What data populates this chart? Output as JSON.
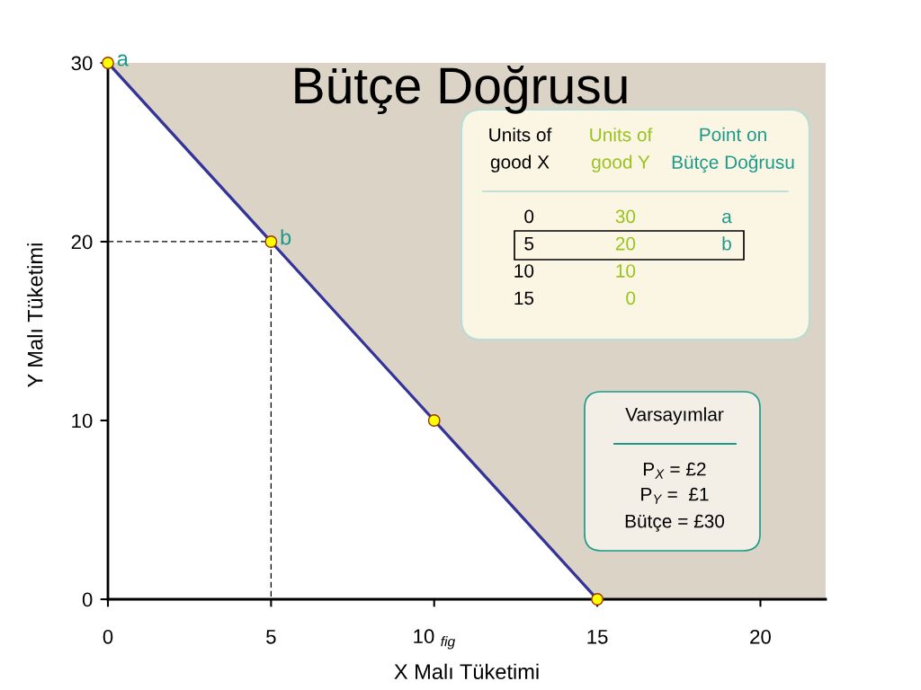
{
  "chart_data": {
    "type": "line",
    "title": "Bütçe Doğrusu",
    "xlabel": "X Malı Tüketimi",
    "ylabel": "Y Malı Tüketimi",
    "xlim": [
      0,
      22
    ],
    "ylim": [
      0,
      30
    ],
    "xticks": [
      0,
      5,
      {
        "value": 10,
        "label": "10 $_{fig}$"
      },
      15,
      20
    ],
    "yticks": [
      0,
      10,
      20,
      30
    ],
    "series": [
      {
        "type": "area",
        "color": "#333399",
        "x": [
          0,
          5,
          10,
          15
        ],
        "values": [
          30,
          20,
          10,
          0
        ]
      },
      {
        "color": "#000000",
        "x": [
          0,
          5,
          5
        ],
        "values": [
          20,
          20,
          0
        ],
        "line_style": "dashed"
      },
      {
        "type": "scatter",
        "color": "#ffff00",
        "x": [
          0,
          5,
          10,
          15
        ],
        "values": [
          30,
          20,
          10,
          0
        ],
        "marker": "circle"
      }
    ],
    "annotations": [
      {
        "text": "a",
        "x": 0,
        "y": 30
      },
      {
        "text": "b",
        "x": 5,
        "y": 20
      },
      "Units of\ngood X",
      "Units of\ngood Y",
      "Point on\nBütçe Doğrusu",
      "0\n5\n10\n15",
      "30\n20\n10\n0",
      "a\nb",
      "Varsayımlar",
      "P$_{X}$ = £2",
      "P$_{Y}$ =  £1",
      "Bütçe = £30"
    ]
  }
}
